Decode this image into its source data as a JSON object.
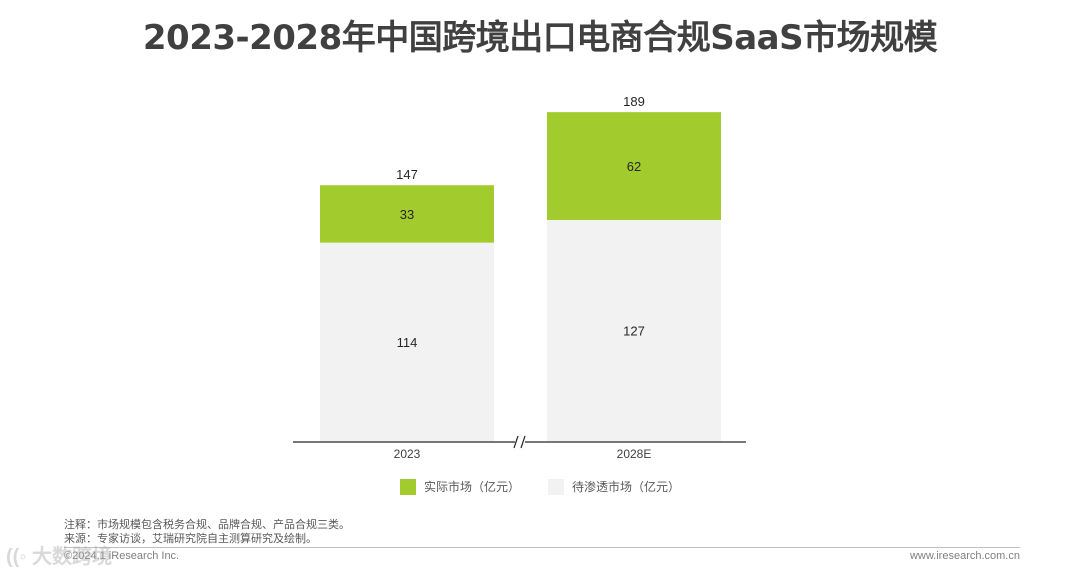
{
  "title": "2023-2028年中国跨境出口电商合规SaaS市场规模",
  "chart_data": {
    "type": "bar",
    "stacked": true,
    "categories": [
      "2023",
      "2028E"
    ],
    "series": [
      {
        "name": "待渗透市场（亿元）",
        "values": [
          114,
          127
        ],
        "color": "#f2f2f2"
      },
      {
        "name": "实际市场（亿元）",
        "values": [
          33,
          62
        ],
        "color": "#a2cc2e"
      }
    ],
    "totals": [
      147,
      189
    ],
    "ylim": [
      0,
      200
    ],
    "axis_break": true,
    "legend_position": "bottom"
  },
  "legend": {
    "item1": "实际市场（亿元）",
    "item2": "待渗透市场（亿元）"
  },
  "notes": {
    "note": "注释：市场规模包含税务合规、品牌合规、产品合规三类。",
    "source": "来源：专家访谈，艾瑞研究院自主测算研究及绘制。"
  },
  "footer": {
    "copyright": "©2024.1 iResearch Inc.",
    "website": "www.iresearch.com.cn"
  }
}
